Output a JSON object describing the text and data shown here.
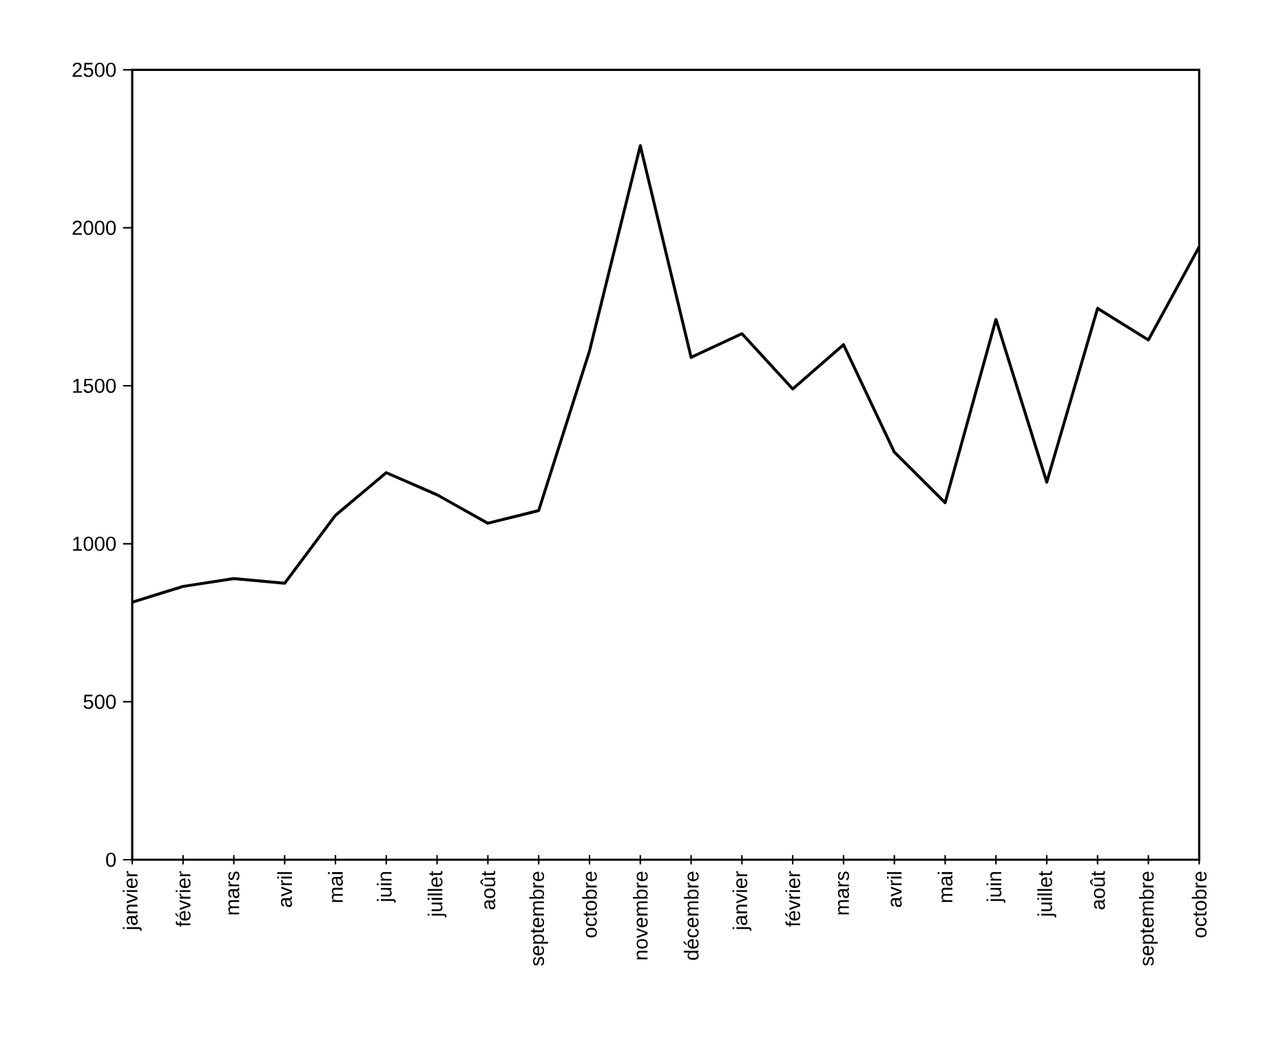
{
  "chart_data": {
    "type": "line",
    "categories": [
      "janvier",
      "février",
      "mars",
      "avril",
      "mai",
      "juin",
      "juillet",
      "août",
      "septembre",
      "octobre",
      "novembre",
      "décembre",
      "janvier",
      "février",
      "mars",
      "avril",
      "mai",
      "juin",
      "juillet",
      "août",
      "septembre",
      "octobre"
    ],
    "values": [
      815,
      865,
      890,
      875,
      1090,
      1225,
      1155,
      1065,
      1105,
      1610,
      2260,
      1590,
      1665,
      1490,
      1630,
      1290,
      1130,
      1710,
      1195,
      1745,
      1645,
      1940
    ],
    "color": "#000000",
    "ylim": [
      0,
      2500
    ],
    "yticks": [
      0,
      500,
      1000,
      1500,
      2000,
      2500
    ],
    "marker": "none",
    "line_style": "solid"
  }
}
